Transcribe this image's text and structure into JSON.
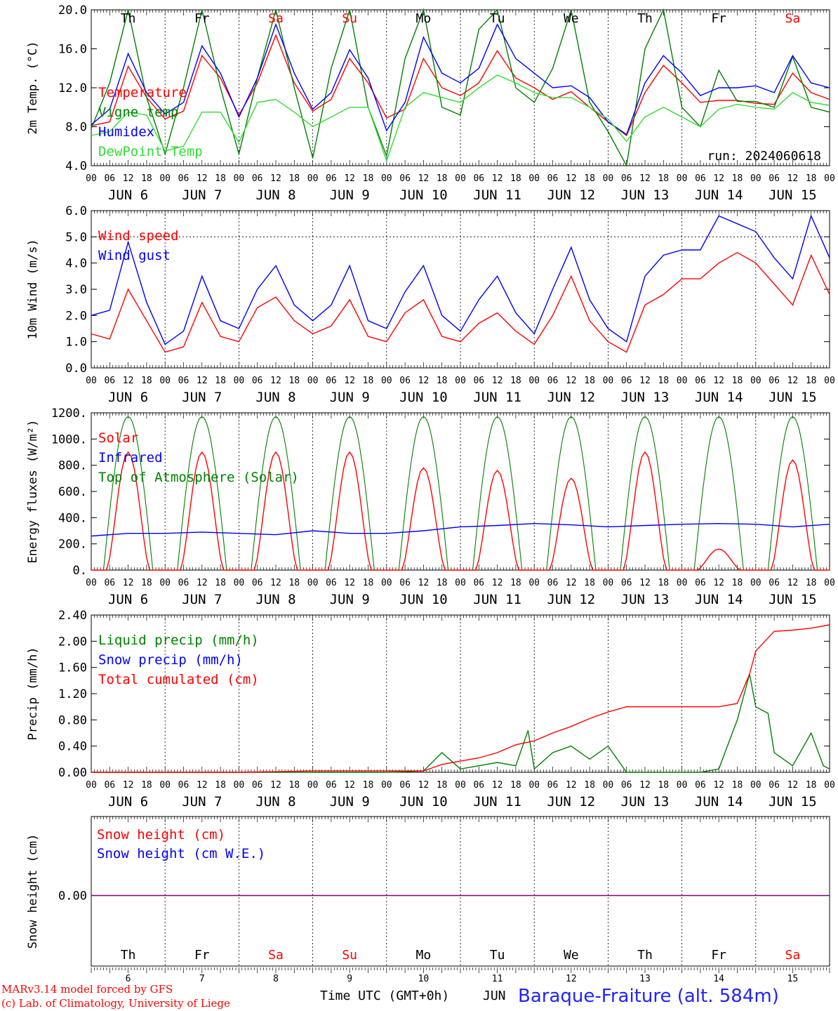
{
  "colors": {
    "red": "#ff0000",
    "green": "#008000",
    "blue": "#0000ff",
    "lightgreen": "#33dd33",
    "purple": "#800080",
    "axis": "#000000"
  },
  "days": [
    "Th",
    "Fr",
    "Sa",
    "Su",
    "Mo",
    "Tu",
    "We",
    "Th",
    "Fr",
    "Sa"
  ],
  "weekend_days": [
    "Sa",
    "Su"
  ],
  "day_numbers": [
    "6",
    "7",
    "8",
    "9",
    "10",
    "11",
    "12",
    "13",
    "14",
    "15"
  ],
  "date_labels": [
    "JUN  6",
    "JUN  7",
    "JUN  8",
    "JUN  9",
    "JUN 10",
    "JUN 11",
    "JUN 12",
    "JUN 13",
    "JUN 14",
    "JUN 15"
  ],
  "hour_ticks": [
    "00",
    "06",
    "12",
    "18"
  ],
  "run_label": "run: 2024060618",
  "footer": {
    "model": "MARv3.14 model forced by GFS",
    "copyright": "(c) Lab. of Climatology, University of Liege",
    "time_axis": "Time UTC (GMT+0h)",
    "month": "JUN",
    "station": "Baraque-Fraiture (alt. 584m)"
  },
  "chart_data": [
    {
      "type": "line",
      "ylabel": "2m Temp. (°C)",
      "ylim": [
        4.0,
        20.0
      ],
      "yticks": [
        "4.0",
        "8.0",
        "12.0",
        "16.0",
        "20.0"
      ],
      "x_unit": "hours since JUN 6 00 UTC",
      "legend": [
        "Temperature",
        "Vigne temp",
        "Humidex",
        "DewPoint Temp"
      ],
      "series": [
        {
          "name": "Temperature",
          "color": "red",
          "x": [
            0,
            6,
            12,
            18,
            24,
            30,
            36,
            42,
            48,
            54,
            60,
            66,
            72,
            78,
            84,
            90,
            96,
            102,
            108,
            114,
            120,
            126,
            132,
            138,
            144,
            150,
            156,
            162,
            168,
            174,
            180,
            186,
            192,
            198,
            204,
            210,
            216,
            222,
            228,
            234,
            240
          ],
          "values": [
            8.1,
            8.5,
            14.2,
            11.0,
            8.8,
            9.6,
            15.3,
            13.0,
            9.2,
            12.5,
            17.4,
            12.5,
            9.6,
            10.8,
            15.0,
            12.5,
            8.9,
            9.8,
            15.0,
            12.0,
            11.2,
            12.5,
            15.8,
            13.0,
            12.0,
            10.8,
            11.6,
            10.0,
            8.5,
            7.1,
            11.5,
            14.3,
            12.5,
            10.5,
            10.7,
            10.7,
            10.4,
            10.3,
            13.5,
            11.5,
            10.8
          ]
        },
        {
          "name": "Vigne temp",
          "color": "green",
          "x": [
            0,
            6,
            12,
            18,
            24,
            30,
            36,
            42,
            48,
            54,
            60,
            66,
            72,
            78,
            84,
            90,
            96,
            102,
            108,
            114,
            120,
            126,
            132,
            138,
            144,
            150,
            156,
            162,
            168,
            174,
            180,
            186,
            192,
            198,
            204,
            210,
            216,
            222,
            228,
            234,
            240
          ],
          "values": [
            7.8,
            12.5,
            20.0,
            11.0,
            5.2,
            12.0,
            20.0,
            12.0,
            5.2,
            13.0,
            20.0,
            12.0,
            4.8,
            14.0,
            20.0,
            10.0,
            5.0,
            15.0,
            20.0,
            10.0,
            9.2,
            18.0,
            20.0,
            12.0,
            10.5,
            14.0,
            20.0,
            10.5,
            7.5,
            4.0,
            16.0,
            20.0,
            10.0,
            8.0,
            13.8,
            10.6,
            10.6,
            10.0,
            15.2,
            10.0,
            9.5
          ]
        },
        {
          "name": "Humidex",
          "color": "blue",
          "x": [
            0,
            6,
            12,
            18,
            24,
            30,
            36,
            42,
            48,
            54,
            60,
            66,
            72,
            78,
            84,
            90,
            96,
            102,
            108,
            114,
            120,
            126,
            132,
            138,
            144,
            150,
            156,
            162,
            168,
            174,
            180,
            186,
            192,
            198,
            204,
            210,
            216,
            222,
            228,
            234,
            240
          ],
          "values": [
            8.2,
            9.8,
            15.5,
            11.5,
            9.3,
            10.5,
            16.3,
            13.5,
            9.0,
            13.0,
            18.5,
            13.5,
            9.8,
            11.5,
            15.9,
            13.0,
            7.6,
            10.5,
            17.2,
            13.5,
            12.5,
            14.0,
            18.5,
            15.0,
            13.5,
            12.0,
            12.2,
            11.0,
            8.5,
            7.2,
            12.5,
            15.3,
            13.5,
            11.2,
            12.0,
            12.0,
            12.2,
            11.5,
            15.3,
            12.5,
            12.0
          ]
        },
        {
          "name": "DewPoint Temp",
          "color": "lightgreen",
          "x": [
            0,
            6,
            12,
            18,
            24,
            30,
            36,
            42,
            48,
            54,
            60,
            66,
            72,
            78,
            84,
            90,
            96,
            102,
            108,
            114,
            120,
            126,
            132,
            138,
            144,
            150,
            156,
            162,
            168,
            174,
            180,
            186,
            192,
            198,
            204,
            210,
            216,
            222,
            228,
            234,
            240
          ],
          "values": [
            7.1,
            7.5,
            9.5,
            9.2,
            5.5,
            6.0,
            9.5,
            9.5,
            6.4,
            10.5,
            10.8,
            9.5,
            8.0,
            9.0,
            10.0,
            10.0,
            4.5,
            10.0,
            11.5,
            11.0,
            10.5,
            12.0,
            13.3,
            12.5,
            11.5,
            11.0,
            11.0,
            10.0,
            8.8,
            6.5,
            9.0,
            10.0,
            9.0,
            8.0,
            9.8,
            10.3,
            10.0,
            9.8,
            11.5,
            10.5,
            10.2
          ]
        }
      ]
    },
    {
      "type": "line",
      "ylabel": "10m Wind (m/s)",
      "ylim": [
        0.0,
        6.0
      ],
      "yticks": [
        "0.0",
        "1.0",
        "2.0",
        "3.0",
        "4.0",
        "5.0",
        "6.0"
      ],
      "reference_line": 5.0,
      "legend": [
        "Wind speed",
        "Wind gust"
      ],
      "series": [
        {
          "name": "Wind speed",
          "color": "red",
          "x": [
            0,
            6,
            12,
            18,
            24,
            30,
            36,
            42,
            48,
            54,
            60,
            66,
            72,
            78,
            84,
            90,
            96,
            102,
            108,
            114,
            120,
            126,
            132,
            138,
            144,
            150,
            156,
            162,
            168,
            174,
            180,
            186,
            192,
            198,
            204,
            210,
            216,
            222,
            228,
            234,
            240
          ],
          "values": [
            1.3,
            1.1,
            3.0,
            1.8,
            0.6,
            0.8,
            2.5,
            1.2,
            1.0,
            2.3,
            2.7,
            1.8,
            1.3,
            1.6,
            2.6,
            1.2,
            1.0,
            2.1,
            2.6,
            1.2,
            1.0,
            1.7,
            2.1,
            1.4,
            0.9,
            2.0,
            3.5,
            1.8,
            1.0,
            0.6,
            2.4,
            2.8,
            3.4,
            3.4,
            4.0,
            4.4,
            4.0,
            3.2,
            2.4,
            4.3,
            2.8
          ]
        },
        {
          "name": "Wind gust",
          "color": "blue",
          "x": [
            0,
            6,
            12,
            18,
            24,
            30,
            36,
            42,
            48,
            54,
            60,
            66,
            72,
            78,
            84,
            90,
            96,
            102,
            108,
            114,
            120,
            126,
            132,
            138,
            144,
            150,
            156,
            162,
            168,
            174,
            180,
            186,
            192,
            198,
            204,
            210,
            216,
            222,
            228,
            234,
            240
          ],
          "values": [
            2.0,
            2.2,
            4.8,
            2.5,
            0.9,
            1.4,
            3.5,
            1.8,
            1.5,
            3.0,
            3.9,
            2.4,
            1.8,
            2.4,
            3.9,
            1.8,
            1.5,
            2.9,
            3.9,
            2.0,
            1.4,
            2.6,
            3.5,
            2.1,
            1.3,
            3.0,
            4.6,
            2.6,
            1.5,
            1.0,
            3.5,
            4.3,
            4.5,
            4.5,
            5.8,
            5.5,
            5.2,
            4.2,
            3.4,
            5.8,
            4.2
          ]
        }
      ]
    },
    {
      "type": "line",
      "ylabel": "Energy fluxes (W/m²)",
      "ylim": [
        0,
        1200
      ],
      "yticks": [
        "0.",
        "200.",
        "400.",
        "600.",
        "800.",
        "1000.",
        "1200."
      ],
      "legend": [
        "Solar",
        "Infrared",
        "Top of Atmosphere (Solar)"
      ],
      "toa_peak": 1170,
      "daylight_hours": [
        4,
        20
      ],
      "solar_peaks": [
        900,
        900,
        900,
        900,
        780,
        760,
        700,
        900,
        160,
        840
      ],
      "series": [
        {
          "name": "Infrared",
          "color": "blue",
          "x": [
            0,
            12,
            24,
            36,
            48,
            60,
            72,
            84,
            96,
            108,
            120,
            132,
            144,
            156,
            168,
            180,
            192,
            204,
            216,
            228,
            240
          ],
          "values": [
            260,
            280,
            280,
            290,
            280,
            270,
            300,
            280,
            280,
            300,
            330,
            340,
            355,
            345,
            330,
            340,
            350,
            355,
            350,
            330,
            350
          ]
        }
      ]
    },
    {
      "type": "line",
      "ylabel": "Precip (mm/h)",
      "ylim": [
        0.0,
        2.4
      ],
      "yticks": [
        "0.00",
        "0.40",
        "0.80",
        "1.20",
        "1.60",
        "2.00",
        "2.40"
      ],
      "legend": [
        "Liquid precip (mm/h)",
        "Snow precip (mm/h)",
        "Total cumulated (cm)"
      ],
      "series": [
        {
          "name": "Liquid precip (mm/h)",
          "color": "green",
          "x": [
            0,
            24,
            48,
            72,
            96,
            108,
            114,
            120,
            126,
            132,
            138,
            142,
            144,
            150,
            156,
            162,
            168,
            174,
            180,
            192,
            198,
            204,
            210,
            214,
            216,
            220,
            222,
            228,
            234,
            238,
            240
          ],
          "values": [
            0,
            0,
            0,
            0,
            0,
            0.02,
            0.3,
            0.05,
            0.1,
            0.15,
            0.1,
            0.64,
            0.05,
            0.3,
            0.4,
            0.2,
            0.4,
            0,
            0,
            0,
            0,
            0.05,
            0.8,
            1.5,
            1.0,
            0.9,
            0.3,
            0.1,
            0.6,
            0.1,
            0.05
          ]
        },
        {
          "name": "Total cumulated (cm)",
          "color": "red",
          "x": [
            0,
            24,
            48,
            72,
            96,
            108,
            114,
            120,
            126,
            132,
            138,
            144,
            150,
            156,
            162,
            168,
            174,
            180,
            192,
            204,
            210,
            214,
            216,
            220,
            222,
            228,
            234,
            240
          ],
          "values": [
            0,
            0,
            0,
            0.02,
            0.02,
            0.02,
            0.12,
            0.17,
            0.22,
            0.3,
            0.42,
            0.48,
            0.6,
            0.7,
            0.82,
            0.92,
            1.0,
            1.0,
            1.0,
            1.0,
            1.05,
            1.5,
            1.85,
            2.05,
            2.15,
            2.17,
            2.2,
            2.25
          ]
        }
      ]
    },
    {
      "type": "line",
      "ylabel": "Snow height (cm)",
      "yticks": [
        "0.00"
      ],
      "legend": [
        "Snow height (cm)",
        "Snow height (cm W.E.)"
      ],
      "series": [
        {
          "name": "Snow height (cm)",
          "color": "purple",
          "x": [
            0,
            240
          ],
          "values": [
            0,
            0
          ]
        }
      ]
    }
  ]
}
